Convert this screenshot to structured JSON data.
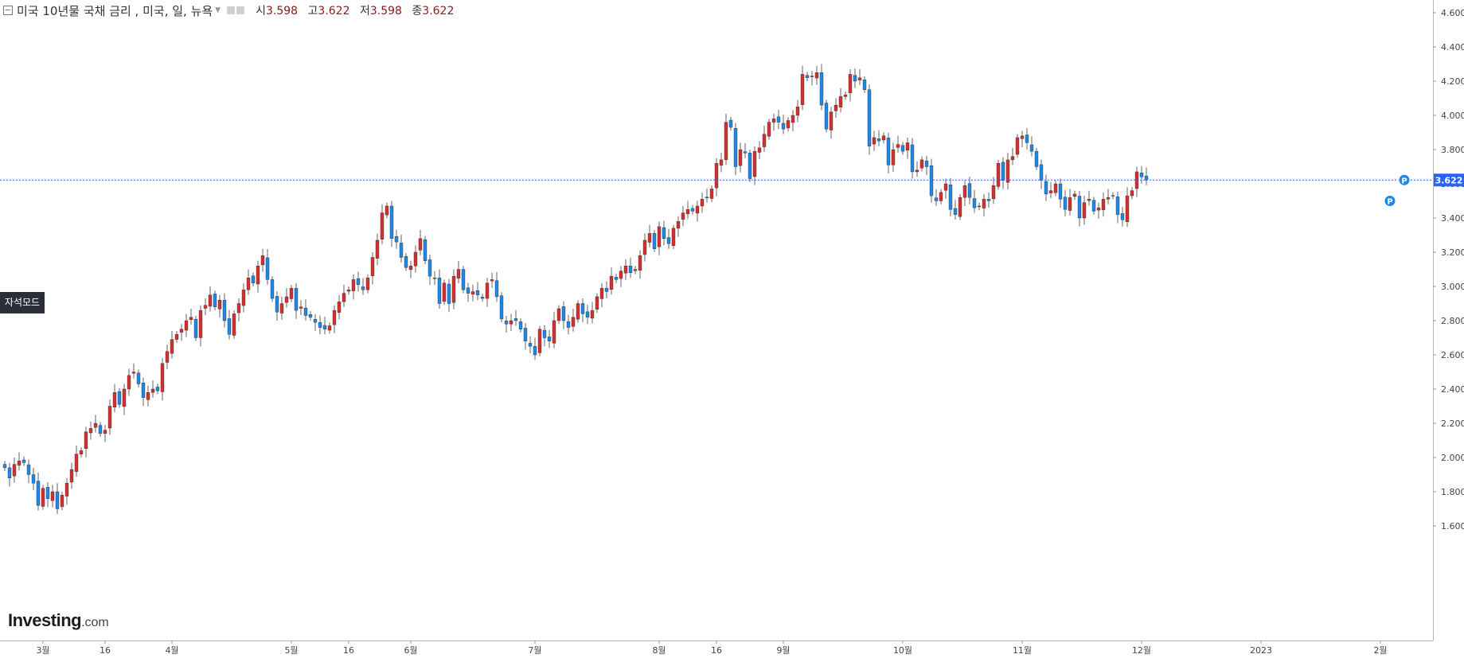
{
  "header": {
    "title": "미국 10년물 국채 금리 , 미국, 일, 뉴욕",
    "open_label": "시",
    "open_value": "3.598",
    "high_label": "고",
    "high_value": "3.622",
    "low_label": "저",
    "low_value": "3.598",
    "close_label": "종",
    "close_value": "3.622"
  },
  "magnet_label": "자석모드",
  "logo": {
    "brand": "Investing",
    "suffix": ".com"
  },
  "colors": {
    "up": "#d32f2f",
    "down": "#1e88e5",
    "price_line": "#2962ff",
    "grid_axis": "#999999"
  },
  "chart_data": {
    "type": "candlestick",
    "title": "미국 10년물 국채 금리 , 미국, 일, 뉴욕",
    "grid": false,
    "ylim": [
      1.55,
      4.6
    ],
    "y_ticks": [
      "1.600",
      "1.800",
      "2.000",
      "2.200",
      "2.400",
      "2.600",
      "2.800",
      "3.000",
      "3.200",
      "3.400",
      "3.600",
      "3.800",
      "4.000",
      "4.200",
      "4.400",
      "4.600"
    ],
    "x_ticks": [
      {
        "label": "3월",
        "i": 8
      },
      {
        "label": "16",
        "i": 21
      },
      {
        "label": "4월",
        "i": 35
      },
      {
        "label": "5월",
        "i": 60
      },
      {
        "label": "16",
        "i": 72
      },
      {
        "label": "6월",
        "i": 85
      },
      {
        "label": "7월",
        "i": 111
      },
      {
        "label": "8월",
        "i": 137
      },
      {
        "label": "16",
        "i": 149
      },
      {
        "label": "9월",
        "i": 163
      },
      {
        "label": "10월",
        "i": 188
      },
      {
        "label": "11월",
        "i": 213
      },
      {
        "label": "12월",
        "i": 238
      },
      {
        "label": "2023",
        "i": 263
      },
      {
        "label": "2월",
        "i": 288
      }
    ],
    "last_price": "3.622",
    "markers": [
      {
        "label": "P",
        "i": 293,
        "value": 3.622
      },
      {
        "label": "P",
        "i": 290,
        "value": 3.5
      }
    ],
    "closes": [
      1.94,
      1.88,
      1.96,
      1.98,
      1.97,
      1.9,
      1.85,
      1.72,
      1.82,
      1.76,
      1.8,
      1.7,
      1.78,
      1.85,
      1.93,
      2.02,
      2.04,
      2.15,
      2.17,
      2.2,
      2.14,
      2.16,
      2.3,
      2.38,
      2.31,
      2.4,
      2.48,
      2.5,
      2.43,
      2.35,
      2.38,
      2.4,
      2.39,
      2.55,
      2.62,
      2.69,
      2.72,
      2.75,
      2.8,
      2.82,
      2.7,
      2.86,
      2.89,
      2.95,
      2.88,
      2.92,
      2.8,
      2.72,
      2.84,
      2.9,
      2.98,
      3.05,
      3.02,
      3.12,
      3.18,
      3.04,
      2.93,
      2.85,
      2.9,
      2.94,
      2.99,
      2.86,
      2.88,
      2.83,
      2.82,
      2.79,
      2.76,
      2.75,
      2.77,
      2.86,
      2.91,
      2.96,
      2.98,
      3.04,
      3.01,
      2.98,
      3.05,
      3.17,
      3.27,
      3.43,
      3.47,
      3.28,
      3.26,
      3.17,
      3.11,
      3.12,
      3.2,
      3.28,
      3.15,
      3.06,
      3.05,
      2.9,
      3.02,
      2.9,
      3.06,
      3.1,
      2.98,
      2.96,
      2.97,
      2.95,
      2.93,
      3.02,
      3.04,
      2.94,
      2.81,
      2.78,
      2.8,
      2.8,
      2.75,
      2.68,
      2.65,
      2.6,
      2.75,
      2.7,
      2.68,
      2.8,
      2.87,
      2.8,
      2.76,
      2.82,
      2.9,
      2.84,
      2.82,
      2.86,
      2.94,
      2.99,
      2.97,
      3.06,
      3.04,
      3.09,
      3.12,
      3.08,
      3.1,
      3.18,
      3.27,
      3.31,
      3.22,
      3.35,
      3.28,
      3.25,
      3.34,
      3.38,
      3.43,
      3.45,
      3.44,
      3.47,
      3.51,
      3.52,
      3.57,
      3.72,
      3.74,
      3.96,
      3.93,
      3.7,
      3.8,
      3.78,
      3.63,
      3.79,
      3.81,
      3.89,
      3.96,
      3.98,
      3.96,
      3.92,
      3.97,
      4.0,
      4.05,
      4.24,
      4.22,
      4.23,
      4.25,
      4.06,
      3.92,
      4.02,
      4.06,
      4.11,
      4.12,
      4.24,
      4.2,
      4.22,
      4.15,
      3.82,
      3.87,
      3.85,
      3.88,
      3.71,
      3.8,
      3.83,
      3.79,
      3.84,
      3.67,
      3.68,
      3.74,
      3.7,
      3.53,
      3.5,
      3.55,
      3.6,
      3.45,
      3.42,
      3.52,
      3.59,
      3.52,
      3.46,
      3.47,
      3.51,
      3.5,
      3.59,
      3.72,
      3.62,
      3.74,
      3.76,
      3.87,
      3.88,
      3.84,
      3.79,
      3.7,
      3.62,
      3.54,
      3.56,
      3.6,
      3.51,
      3.45,
      3.52,
      3.54,
      3.4,
      3.49,
      3.51,
      3.44,
      3.46,
      3.51,
      3.52,
      3.53,
      3.42,
      3.39,
      3.53,
      3.56,
      3.67,
      3.64,
      3.622
    ]
  }
}
